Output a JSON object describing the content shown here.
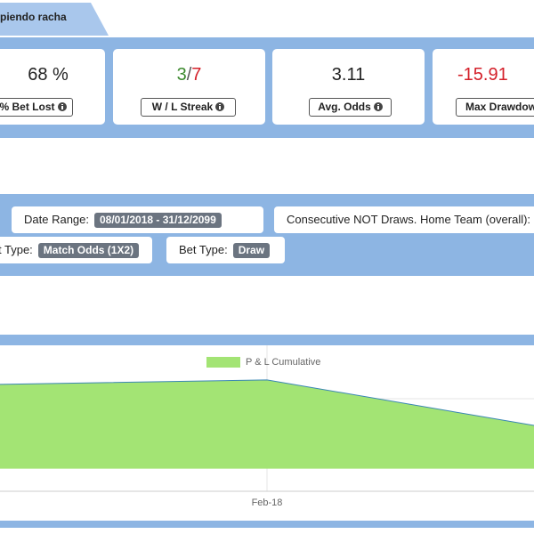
{
  "tab": "piendo racha",
  "stats": [
    {
      "value": "68 %",
      "label": "% Bet Lost"
    },
    {
      "win": "3",
      "sep": "/",
      "loss": "7",
      "label": "W / L Streak"
    },
    {
      "value": "3.11",
      "label": "Avg. Odds"
    },
    {
      "value": "-15.91",
      "label": "Max Drawdow"
    }
  ],
  "filters": {
    "date_label": "Date Range:",
    "date_value": "08/01/2018 - 31/12/2099",
    "consecutive": "Consecutive NOT Draws. Home Team (overall):",
    "market_label": "t Type:",
    "market_value": "Match Odds (1X2)",
    "bet_label": "Bet Type:",
    "bet_value": "Draw"
  },
  "chart_data": {
    "type": "area",
    "categories": [
      null,
      "Feb-18",
      null
    ],
    "series": [
      {
        "name": "P & L Cumulative",
        "color": "#a3e474",
        "line_color": "#3a86b4",
        "values": [
          1.87,
          1.97,
          0.96
        ]
      }
    ],
    "ylim": [
      -0.5,
      2.5
    ]
  }
}
